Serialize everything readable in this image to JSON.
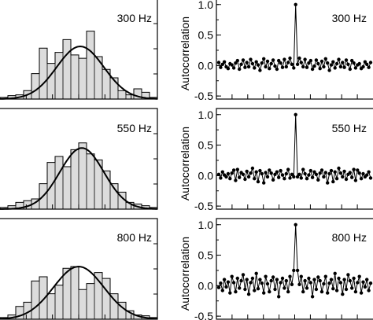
{
  "chart_data": [
    {
      "type": "histogram",
      "panel": "histogram",
      "label": "300 Hz",
      "bars": [
        0.02,
        0.04,
        0.05,
        0.1,
        0.3,
        0.6,
        0.42,
        0.55,
        0.7,
        0.52,
        0.48,
        0.8,
        0.5,
        0.35,
        0.25,
        0.1,
        0.05,
        0.12,
        0.08,
        0.02
      ],
      "fit": {
        "type": "gaussian",
        "peak": 0.62,
        "center_frac": 0.51,
        "sigma_frac": 0.15
      }
    },
    {
      "type": "line",
      "panel": "autocorrelation",
      "label": "300 Hz",
      "ylabel": "Autocorrelation",
      "yticks": [
        "1.0",
        "0.5",
        "0.0",
        "-0.5"
      ],
      "ylim": [
        -0.55,
        1.1
      ],
      "values": [
        0.05,
        -0.03,
        0.02,
        0.06,
        -0.02,
        -0.05,
        0.03,
        0.01,
        -0.04,
        0.04,
        0.08,
        -0.06,
        0.02,
        0.09,
        -0.03,
        0.05,
        -0.02,
        0.1,
        0.03,
        -0.04,
        0.06,
        0.01,
        -0.08,
        0.04,
        0.11,
        -0.02,
        0.07,
        -0.05,
        0.03,
        0.09,
        -0.01,
        -0.06,
        0.08,
        0.04,
        -0.03,
        0.1,
        -0.02,
        0.05,
        0.12,
        0.02,
        -0.04,
        1.0,
        0.02,
        0.12,
        0.05,
        -0.02,
        0.1,
        -0.03,
        0.04,
        0.08,
        -0.06,
        -0.01,
        0.09,
        0.03,
        -0.05,
        0.07,
        -0.02,
        0.11,
        0.04,
        -0.08,
        0.01,
        0.06,
        -0.04,
        0.03,
        0.1,
        -0.02,
        0.05,
        -0.03,
        0.09,
        0.02,
        -0.06,
        0.08,
        0.04,
        -0.04,
        0.01,
        0.03,
        -0.05,
        -0.02,
        0.06,
        0.02,
        -0.03,
        0.05
      ]
    },
    {
      "type": "histogram",
      "panel": "histogram",
      "label": "550 Hz",
      "bars": [
        0.02,
        0.04,
        0.08,
        0.1,
        0.12,
        0.3,
        0.55,
        0.62,
        0.5,
        0.7,
        0.78,
        0.65,
        0.58,
        0.45,
        0.3,
        0.2,
        0.08,
        0.06,
        0.04,
        0.02
      ],
      "fit": {
        "type": "gaussian",
        "peak": 0.72,
        "center_frac": 0.52,
        "sigma_frac": 0.14
      }
    },
    {
      "type": "line",
      "panel": "autocorrelation",
      "label": "550 Hz",
      "ylabel": "Autocorrelation",
      "yticks": [
        "1.0",
        "0.5",
        "0.0",
        "-0.5"
      ],
      "ylim": [
        -0.55,
        1.1
      ],
      "values": [
        0.02,
        -0.04,
        0.06,
        0.01,
        -0.02,
        0.03,
        -0.05,
        0.04,
        0.09,
        -0.08,
        0.1,
        -0.03,
        0.05,
        0.02,
        -0.06,
        0.07,
        -0.02,
        0.04,
        0.12,
        -0.05,
        0.06,
        -0.1,
        0.08,
        0.03,
        -0.12,
        0.05,
        -0.02,
        0.09,
        0.04,
        -0.07,
        0.02,
        0.06,
        -0.03,
        0.08,
        0.01,
        -0.05,
        0.03,
        0.1,
        -0.04,
        0.02,
        -0.02,
        1.0,
        -0.02,
        0.02,
        -0.04,
        0.1,
        0.03,
        -0.05,
        0.01,
        0.08,
        -0.03,
        0.06,
        0.02,
        -0.07,
        0.04,
        0.09,
        -0.02,
        0.05,
        -0.12,
        0.03,
        0.08,
        -0.1,
        0.06,
        -0.05,
        0.12,
        0.04,
        -0.02,
        0.07,
        -0.06,
        0.02,
        0.05,
        -0.03,
        0.1,
        -0.08,
        0.09,
        0.04,
        -0.05,
        0.03,
        -0.02,
        0.01,
        0.06,
        -0.04
      ]
    },
    {
      "type": "histogram",
      "panel": "histogram",
      "label": "800 Hz",
      "bars": [
        0.02,
        0.05,
        0.15,
        0.2,
        0.45,
        0.5,
        0.3,
        0.4,
        0.6,
        0.62,
        0.35,
        0.42,
        0.55,
        0.48,
        0.3,
        0.2,
        0.1,
        0.05,
        0.04,
        0.02
      ],
      "fit": {
        "type": "gaussian",
        "peak": 0.62,
        "center_frac": 0.5,
        "sigma_frac": 0.16
      }
    },
    {
      "type": "line",
      "panel": "autocorrelation",
      "label": "800 Hz",
      "ylabel": "Autocorrelation",
      "yticks": [
        "1.0",
        "0.5",
        "0.0",
        "-0.5"
      ],
      "ylim": [
        -0.55,
        1.1
      ],
      "values": [
        -0.03,
        0.04,
        -0.08,
        0.1,
        -0.02,
        0.06,
        -0.12,
        0.15,
        0.05,
        -0.1,
        0.12,
        -0.04,
        0.08,
        0.18,
        -0.06,
        0.1,
        -0.14,
        0.05,
        0.12,
        -0.08,
        0.2,
        -0.05,
        0.1,
        0.04,
        -0.12,
        0.15,
        0.03,
        -0.1,
        0.08,
        0.14,
        -0.06,
        0.1,
        -0.18,
        0.05,
        0.12,
        -0.04,
        0.08,
        -0.1,
        0.15,
        0.02,
        0.25,
        1.0,
        0.25,
        0.02,
        0.15,
        -0.1,
        0.08,
        -0.04,
        0.12,
        0.05,
        -0.18,
        0.1,
        -0.06,
        0.14,
        0.08,
        -0.1,
        0.03,
        0.15,
        -0.12,
        0.04,
        0.1,
        -0.05,
        0.2,
        -0.08,
        0.12,
        0.05,
        -0.14,
        0.1,
        -0.06,
        0.18,
        0.08,
        -0.04,
        0.12,
        -0.1,
        0.05,
        0.15,
        -0.12,
        0.06,
        -0.02,
        0.1,
        -0.08,
        0.04
      ]
    }
  ],
  "labels": {
    "hist_1": "300 Hz",
    "hist_2": "550 Hz",
    "hist_3": "800 Hz",
    "ac_1": "300 Hz",
    "ac_2": "550 Hz",
    "ac_3": "800 Hz",
    "ylabel": "Autocorrelation",
    "yticks": [
      "1.0",
      "0.5",
      "0.0",
      "-0.5"
    ]
  }
}
